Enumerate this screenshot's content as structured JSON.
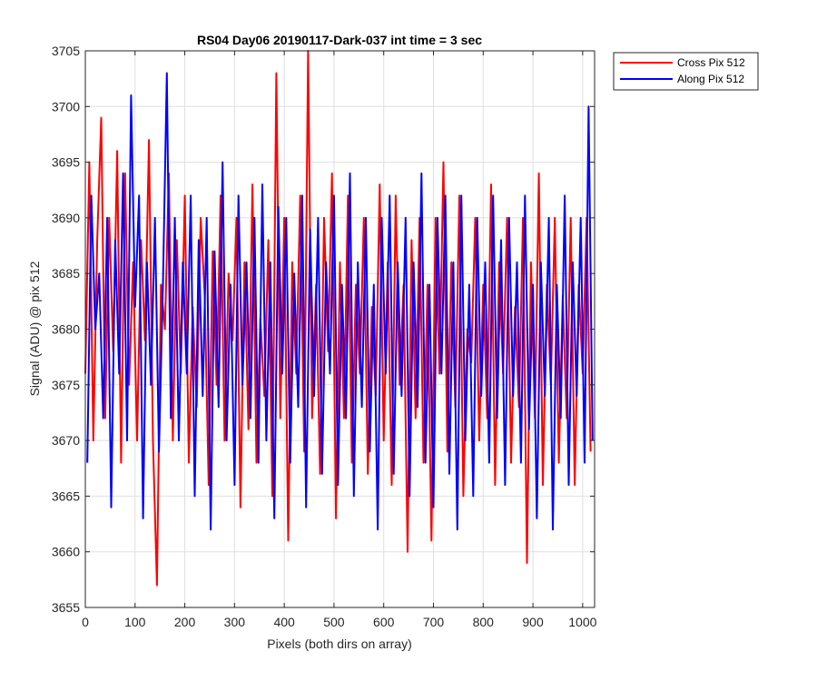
{
  "chart_data": {
    "type": "line",
    "title": "RS04 Day06 20190117-Dark-037 int time = 3 sec",
    "xlabel": "Pixels (both dirs on array)",
    "ylabel": "Signal (ADU) @ pix 512",
    "xlim": [
      0,
      1024
    ],
    "ylim": [
      3655,
      3705
    ],
    "xticks": [
      0,
      100,
      200,
      300,
      400,
      500,
      600,
      700,
      800,
      900,
      1000
    ],
    "yticks": [
      3655,
      3660,
      3665,
      3670,
      3675,
      3680,
      3685,
      3690,
      3695,
      3700,
      3705
    ],
    "grid": true,
    "legend_position": "outside-top-right",
    "series": [
      {
        "name": "Cross Pix 512",
        "color": "#ff0000",
        "x_start": 0,
        "x_step": 8,
        "values": [
          3676,
          3695,
          3670,
          3688,
          3699,
          3672,
          3690,
          3678,
          3696,
          3668,
          3694,
          3675,
          3686,
          3670,
          3688,
          3679,
          3697,
          3670,
          3657,
          3684,
          3680,
          3694,
          3670,
          3688,
          3676,
          3692,
          3668,
          3682,
          3673,
          3690,
          3683,
          3666,
          3687,
          3675,
          3692,
          3670,
          3685,
          3679,
          3690,
          3664,
          3686,
          3671,
          3693,
          3668,
          3681,
          3674,
          3688,
          3665,
          3703,
          3672,
          3690,
          3661,
          3686,
          3676,
          3692,
          3669,
          3705,
          3672,
          3684,
          3667,
          3690,
          3678,
          3694,
          3663,
          3686,
          3672,
          3692,
          3668,
          3684,
          3676,
          3690,
          3667,
          3682,
          3674,
          3693,
          3670,
          3686,
          3666,
          3692,
          3675,
          3684,
          3660,
          3688,
          3672,
          3690,
          3668,
          3684,
          3661,
          3690,
          3676,
          3695,
          3669,
          3686,
          3673,
          3692,
          3665,
          3680,
          3677,
          3690,
          3670,
          3684,
          3672,
          3693,
          3666,
          3686,
          3676,
          3690,
          3668,
          3682,
          3673,
          3690,
          3659,
          3686,
          3672,
          3694,
          3666,
          3684,
          3675,
          3690,
          3668,
          3683,
          3672,
          3690,
          3666,
          3684,
          3676,
          3690,
          3669
        ]
      },
      {
        "name": "Along Pix 512",
        "color": "#0000ff",
        "x_start": 4,
        "x_step": 8,
        "values": [
          3668,
          3692,
          3680,
          3685,
          3672,
          3690,
          3664,
          3688,
          3676,
          3694,
          3670,
          3701,
          3682,
          3692,
          3663,
          3686,
          3675,
          3690,
          3669,
          3684,
          3703,
          3672,
          3690,
          3670,
          3686,
          3676,
          3692,
          3665,
          3688,
          3674,
          3690,
          3662,
          3687,
          3673,
          3695,
          3670,
          3684,
          3666,
          3692,
          3675,
          3686,
          3672,
          3690,
          3668,
          3693,
          3670,
          3686,
          3663,
          3691,
          3676,
          3690,
          3668,
          3685,
          3673,
          3692,
          3664,
          3689,
          3674,
          3690,
          3667,
          3686,
          3676,
          3692,
          3666,
          3684,
          3672,
          3694,
          3665,
          3686,
          3673,
          3690,
          3669,
          3684,
          3662,
          3690,
          3676,
          3692,
          3667,
          3686,
          3674,
          3690,
          3665,
          3686,
          3673,
          3694,
          3668,
          3684,
          3664,
          3690,
          3676,
          3692,
          3667,
          3686,
          3662,
          3692,
          3670,
          3684,
          3665,
          3690,
          3674,
          3686,
          3668,
          3692,
          3672,
          3688,
          3666,
          3690,
          3674,
          3686,
          3668,
          3692,
          3671,
          3684,
          3663,
          3686,
          3674,
          3690,
          3662,
          3684,
          3672,
          3692,
          3666,
          3686,
          3674,
          3690,
          3668,
          3700,
          3670
        ]
      }
    ]
  }
}
